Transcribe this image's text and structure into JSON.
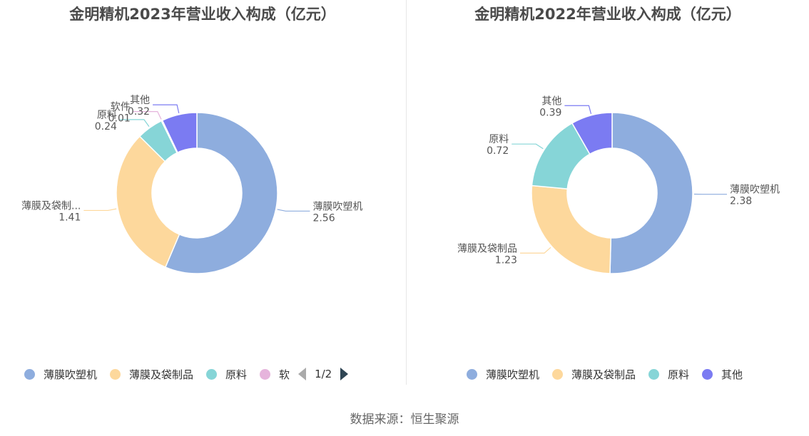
{
  "source": "数据来源：恒生聚源",
  "colors": {
    "blown_film": "#8eadde",
    "bags": "#fdd89c",
    "raw": "#86d5d7",
    "software": "#e6b4dc",
    "other": "#7b7bf2"
  },
  "chart_data": [
    {
      "type": "pie",
      "donut": true,
      "title": "金明精机2023年营业收入构成（亿元）",
      "slices": [
        {
          "name": "薄膜吹塑机",
          "label": "薄膜吹塑机",
          "value": 2.56,
          "value_label": "2.56",
          "color": "#8eadde"
        },
        {
          "name": "薄膜及袋制品",
          "label": "薄膜及袋制...",
          "value": 1.41,
          "value_label": "1.41",
          "color": "#fdd89c"
        },
        {
          "name": "原料",
          "label": "原料",
          "value": 0.24,
          "value_label": "0.24",
          "color": "#86d5d7"
        },
        {
          "name": "软件",
          "label": "软件",
          "value": 0.01,
          "value_label": "0.01",
          "color": "#e6b4dc"
        },
        {
          "name": "其他",
          "label": "其他",
          "value": 0.32,
          "value_label": "0.32",
          "color": "#7b7bf2"
        }
      ],
      "legend": {
        "placement": "bottom",
        "visible_items": [
          "薄膜吹塑机",
          "薄膜及袋制品",
          "原料",
          "软"
        ],
        "page": "1/2"
      }
    },
    {
      "type": "pie",
      "donut": true,
      "title": "金明精机2022年营业收入构成（亿元）",
      "slices": [
        {
          "name": "薄膜吹塑机",
          "label": "薄膜吹塑机",
          "value": 2.38,
          "value_label": "2.38",
          "color": "#8eadde"
        },
        {
          "name": "薄膜及袋制品",
          "label": "薄膜及袋制品",
          "value": 1.23,
          "value_label": "1.23",
          "color": "#fdd89c"
        },
        {
          "name": "原料",
          "label": "原料",
          "value": 0.72,
          "value_label": "0.72",
          "color": "#86d5d7"
        },
        {
          "name": "其他",
          "label": "其他",
          "value": 0.39,
          "value_label": "0.39",
          "color": "#7b7bf2"
        }
      ],
      "legend": {
        "placement": "bottom",
        "visible_items": [
          "薄膜吹塑机",
          "薄膜及袋制品",
          "原料",
          "其他"
        ]
      }
    }
  ]
}
